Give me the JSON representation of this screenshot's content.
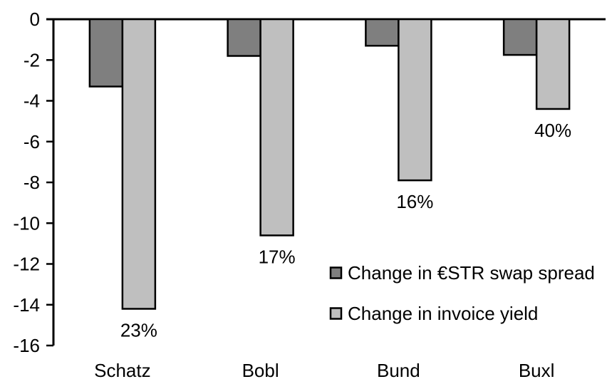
{
  "chart_data": {
    "type": "bar",
    "orientation": "vertical",
    "title": "",
    "xlabel": "",
    "ylabel": "",
    "categories": [
      "Schatz",
      "Bobl",
      "Bund",
      "Buxl"
    ],
    "series": [
      {
        "name": "Change in €STR swap spread",
        "color": "#7F7F7F",
        "values": [
          -3.3,
          -1.8,
          -1.3,
          -1.75
        ]
      },
      {
        "name": "Change in invoice yield",
        "color": "#BFBFBF",
        "values": [
          -14.2,
          -10.6,
          -7.9,
          -4.4
        ]
      }
    ],
    "bar_labels": {
      "series": "Change in invoice yield",
      "values": [
        "23%",
        "17%",
        "16%",
        "40%"
      ]
    },
    "ylim": [
      -16,
      0
    ],
    "ytick_step": 2,
    "yticks": [
      0,
      -2,
      -4,
      -6,
      -8,
      -10,
      -12,
      -14,
      -16
    ],
    "grid": false,
    "legend_position": "inside-right-middle",
    "axis_color": "#000000",
    "bar_border_color": "#000000",
    "background": "#FFFFFF",
    "text_color": "#000000"
  }
}
